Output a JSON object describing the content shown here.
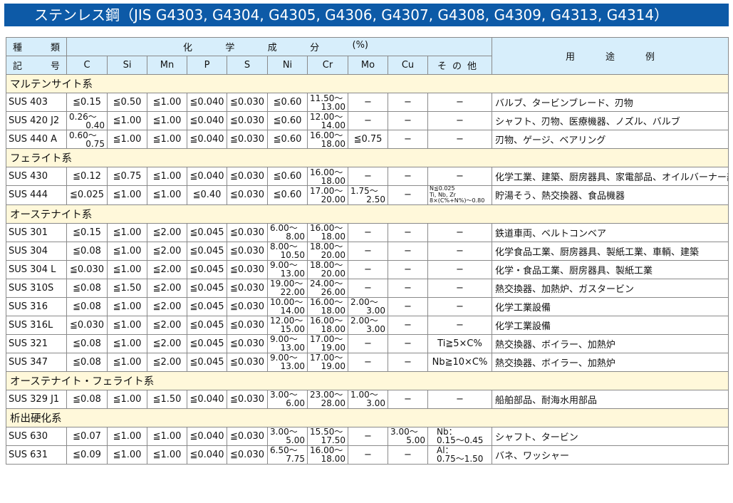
{
  "title": "ステンレス鋼（JIS G4303, G4304, G4305, G4306, G4307, G4308, G4309, G4313, G4314）",
  "header": {
    "type_label": [
      "種",
      "類"
    ],
    "symbol_label": [
      "記",
      "号"
    ],
    "chem_label": [
      "化",
      "学",
      "成",
      "分",
      "(%)"
    ],
    "columns": [
      "C",
      "Si",
      "Mn",
      "P",
      "S",
      "Ni",
      "Cr",
      "Mo",
      "Cu",
      "その他"
    ],
    "other_label": [
      "そ",
      "の",
      "他"
    ],
    "use_label": [
      "用",
      "途",
      "例"
    ]
  },
  "groups": [
    {
      "category": "マルテンサイト系",
      "rows": [
        {
          "name": "SUS 403",
          "cells": [
            "≦0.15",
            "≦0.50",
            "≦1.00",
            "≦0.040",
            "≦0.030",
            "≦0.60",
            [
              "11.50〜",
              "13.00"
            ],
            "−",
            "−",
            "−"
          ],
          "use": "バルブ、タービンブレード、刃物"
        },
        {
          "name": "SUS 420 J2",
          "cells": [
            [
              "0.26〜",
              "0.40"
            ],
            "≦1.00",
            "≦1.00",
            "≦0.040",
            "≦0.030",
            "≦0.60",
            [
              "12.00〜",
              "14.00"
            ],
            "−",
            "−",
            "−"
          ],
          "use": "シャフト、刃物、医療機器、ノズル、バルブ"
        },
        {
          "name": "SUS 440 A",
          "cells": [
            [
              "0.60〜",
              "0.75"
            ],
            "≦1.00",
            "≦1.00",
            "≦0.040",
            "≦0.030",
            "≦0.60",
            [
              "16.00〜",
              "18.00"
            ],
            "≦0.75",
            "−",
            "−"
          ],
          "use": "刃物、ゲージ、ベアリング"
        }
      ]
    },
    {
      "category": "フェライト系",
      "rows": [
        {
          "name": "SUS 430",
          "cells": [
            "≦0.12",
            "≦0.75",
            "≦1.00",
            "≦0.040",
            "≦0.030",
            "≦0.60",
            [
              "16.00〜",
              "18.00"
            ],
            "−",
            "−",
            "−"
          ],
          "use": "化学工業、建築、厨房器具、家電部品、オイルバーナー部品"
        },
        {
          "name": "SUS 444",
          "cells": [
            "≦0.025",
            "≦1.00",
            "≦1.00",
            "≦0.40",
            "≦0.030",
            "≦0.60",
            [
              "17.00〜",
              "20.00"
            ],
            [
              "1.75〜",
              "2.50"
            ],
            "−",
            {
              "small": [
                "N≦0.025",
                "Ti, Nb, Zr",
                "8×(C%+N%)〜0.80"
              ]
            }
          ],
          "use": "貯湯そう、熱交換器、食品機器"
        }
      ]
    },
    {
      "category": "オーステナイト系",
      "rows": [
        {
          "name": "SUS 301",
          "cells": [
            "≦0.15",
            "≦1.00",
            "≦2.00",
            "≦0.045",
            "≦0.030",
            [
              "6.00〜",
              "8.00"
            ],
            [
              "16.00〜",
              "18.00"
            ],
            "−",
            "−",
            "−"
          ],
          "use": "鉄道車両、ベルトコンベア"
        },
        {
          "name": "SUS 304",
          "cells": [
            "≦0.08",
            "≦1.00",
            "≦2.00",
            "≦0.045",
            "≦0.030",
            [
              "8.00〜",
              "10.50"
            ],
            [
              "18.00〜",
              "20.00"
            ],
            "−",
            "−",
            "−"
          ],
          "use": "化学食品工業、厨房器具、製紙工業、車輌、建築"
        },
        {
          "name": "SUS 304 L",
          "cells": [
            "≦0.030",
            "≦1.00",
            "≦2.00",
            "≦0.045",
            "≦0.030",
            [
              "9.00〜",
              "13.00"
            ],
            [
              "18.00〜",
              "20.00"
            ],
            "−",
            "−",
            "−"
          ],
          "use": "化学・食品工業、厨房器具、製紙工業"
        },
        {
          "name": "SUS 310S",
          "cells": [
            "≦0.08",
            "≦1.50",
            "≦2.00",
            "≦0.045",
            "≦0.030",
            [
              "19.00〜",
              "22.00"
            ],
            [
              "24.00〜",
              "26.00"
            ],
            "−",
            "−",
            "−"
          ],
          "use": "熱交換器、加熱炉、ガスタービン"
        },
        {
          "name": "SUS 316",
          "cells": [
            "≦0.08",
            "≦1.00",
            "≦2.00",
            "≦0.045",
            "≦0.030",
            [
              "10.00〜",
              "14.00"
            ],
            [
              "16.00〜",
              "18.00"
            ],
            [
              "2.00〜",
              "3.00"
            ],
            "−",
            "−"
          ],
          "use": "化学工業設備"
        },
        {
          "name": "SUS 316L",
          "cells": [
            "≦0.030",
            "≦1.00",
            "≦2.00",
            "≦0.045",
            "≦0.030",
            [
              "12.00〜",
              "15.00"
            ],
            [
              "16.00〜",
              "18.00"
            ],
            [
              "2.00〜",
              "3.00"
            ],
            "−",
            "−"
          ],
          "use": "化学工業設備"
        },
        {
          "name": "SUS 321",
          "cells": [
            "≦0.08",
            "≦1.00",
            "≦2.00",
            "≦0.045",
            "≦0.030",
            [
              "9.00〜",
              "13.00"
            ],
            [
              "17.00〜",
              "19.00"
            ],
            "−",
            "−",
            "Ti≧5×C%"
          ],
          "use": "熱交換器、ボイラー、加熱炉"
        },
        {
          "name": "SUS 347",
          "cells": [
            "≦0.08",
            "≦1.00",
            "≦2.00",
            "≦0.045",
            "≦0.030",
            [
              "9.00〜",
              "13.00"
            ],
            [
              "17.00〜",
              "19.00"
            ],
            "−",
            "−",
            "Nb≧10×C%"
          ],
          "use": "熱交換器、ボイラー、加熱炉"
        }
      ]
    },
    {
      "category": "オーステナイト・フェライト系",
      "rows": [
        {
          "name": "SUS 329 J1",
          "cells": [
            "≦0.08",
            "≦1.00",
            "≦1.50",
            "≦0.040",
            "≦0.030",
            [
              "3.00〜",
              "6.00"
            ],
            [
              "23.00〜",
              "28.00"
            ],
            [
              "1.00〜",
              "3.00"
            ],
            "−",
            "−"
          ],
          "use": "船舶部品、耐海水用部品"
        }
      ]
    },
    {
      "category": "析出硬化系",
      "rows": [
        {
          "name": "SUS 630",
          "cells": [
            "≦0.07",
            "≦1.00",
            "≦1.00",
            "≦0.040",
            "≦0.030",
            [
              "3.00〜",
              "5.00"
            ],
            [
              "15.50〜",
              "17.50"
            ],
            "−",
            [
              "3.00〜",
              "5.00"
            ],
            {
              "two": [
                "Nb：",
                "0.15〜0.45"
              ]
            }
          ],
          "use": "シャフト、タービン"
        },
        {
          "name": "SUS 631",
          "cells": [
            "≦0.09",
            "≦1.00",
            "≦1.00",
            "≦0.040",
            "≦0.030",
            [
              "6.50〜",
              "7.75"
            ],
            [
              "16.00〜",
              "18.00"
            ],
            "−",
            "−",
            {
              "two": [
                "Al：",
                "0.75〜1.50"
              ]
            }
          ],
          "use": "バネ、ワッシャー"
        }
      ]
    }
  ]
}
